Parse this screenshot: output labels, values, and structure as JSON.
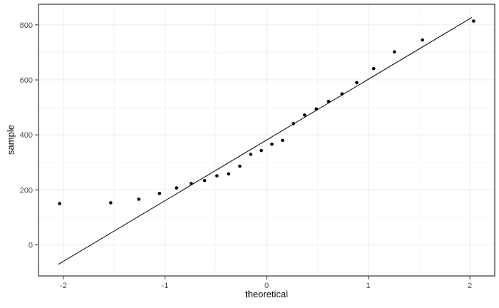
{
  "chart_data": {
    "type": "scatter",
    "subtype": "qq_plot",
    "title": "",
    "xlabel": "theoretical",
    "ylabel": "sample",
    "xlim": [
      -2.245,
      2.245
    ],
    "ylim": [
      -113,
      875
    ],
    "x_ticks": [
      -2,
      -1,
      0,
      1,
      2
    ],
    "x_minor_ticks": [
      -1.5,
      -0.5,
      0.5,
      1.5
    ],
    "y_ticks": [
      0,
      200,
      400,
      600,
      800
    ],
    "y_minor_ticks": [
      -100,
      100,
      300,
      500,
      700
    ],
    "grid": "major_and_minor",
    "legend": "none",
    "points": [
      [
        -2.037,
        150
      ],
      [
        -1.534,
        153
      ],
      [
        -1.258,
        166
      ],
      [
        -1.054,
        187
      ],
      [
        -0.887,
        207
      ],
      [
        -0.742,
        223
      ],
      [
        -0.61,
        234
      ],
      [
        -0.489,
        251
      ],
      [
        -0.374,
        258
      ],
      [
        -0.264,
        286
      ],
      [
        -0.157,
        329
      ],
      [
        -0.052,
        343
      ],
      [
        0.052,
        366
      ],
      [
        0.157,
        380
      ],
      [
        0.264,
        441
      ],
      [
        0.374,
        472
      ],
      [
        0.489,
        494
      ],
      [
        0.61,
        522
      ],
      [
        0.742,
        549
      ],
      [
        0.887,
        590
      ],
      [
        1.054,
        641
      ],
      [
        1.258,
        702
      ],
      [
        1.534,
        745
      ],
      [
        2.037,
        814
      ]
    ],
    "ref_line": {
      "x1": -2.05,
      "y1": -71,
      "x2": 2.02,
      "y2": 827,
      "slope": 221,
      "intercept": 381
    },
    "colors": {
      "point": "#000000",
      "line": "#000000",
      "panel_bg": "#ffffff",
      "grid_major": "#ebebeb",
      "grid_minor": "#f2f2f2",
      "panel_border": "#333333",
      "tick": "#333333",
      "axis_text": "#4d4d4d",
      "axis_title": "#000000",
      "background": "#ffffff"
    }
  }
}
